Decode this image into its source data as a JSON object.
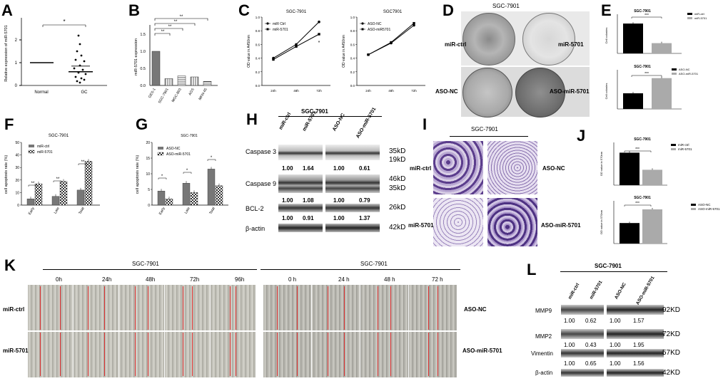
{
  "panels": [
    "A",
    "B",
    "C",
    "D",
    "E",
    "F",
    "G",
    "H",
    "I",
    "J",
    "K",
    "L"
  ],
  "cell_line": "SGC-7901",
  "A": {
    "ylabel": "Relative expression of miR-5701",
    "groups": [
      "Normal",
      "GC"
    ],
    "sig": "*",
    "yticks": [
      "0",
      "1",
      "2"
    ]
  },
  "B": {
    "ylabel": "miR-5701 expression",
    "sig": [
      "**",
      "**",
      "**",
      "**"
    ],
    "yticks": [
      "0.0",
      "0.5",
      "1.0",
      "1.5"
    ]
  },
  "C1": {
    "title": "SGC-7901",
    "ylabel": "OD value in A450nm",
    "series": [
      "miR Ctrl",
      "miR-5701"
    ],
    "x": [
      "24h",
      "48h",
      "72h"
    ],
    "yticks": [
      "0.0",
      "0.2",
      "0.4",
      "0.6",
      "0.8",
      "1.0"
    ],
    "sig": "*"
  },
  "C2": {
    "title": "SGC7901",
    "ylabel": "OD value in A450nm",
    "series": [
      "ASO-NC",
      "ASO-miR5701"
    ],
    "x": [
      "24h",
      "48h",
      "72h"
    ],
    "yticks": [
      "0.0",
      "0.2",
      "0.4",
      "0.6",
      "0.8",
      "1.0"
    ]
  },
  "D": {
    "title": "SGC-7901",
    "labels": [
      "miR-ctrl",
      "miR-5701",
      "ASO-NC",
      "ASO-miR-5701"
    ]
  },
  "E1": {
    "title": "SGC-7901",
    "ylabel": "Cell colonies",
    "legend": [
      "miR-ctrl",
      "miR-5701"
    ],
    "sig": "***"
  },
  "E2": {
    "title": "SGC-7901",
    "ylabel": "Cell colonies",
    "legend": [
      "ASO-NC",
      "ASO-miR-5701"
    ],
    "sig": "***"
  },
  "F": {
    "title": "SGC-7901",
    "ylabel": "cell apoptosis rate (%)",
    "legend": [
      "miR-ctrl",
      "miR-5701"
    ],
    "groups": [
      "Early",
      "Late",
      "Total"
    ],
    "sig": [
      "**",
      "**",
      "**"
    ],
    "yticks": [
      "0",
      "10",
      "20",
      "30",
      "40",
      "50"
    ]
  },
  "G": {
    "title": "SGC-7901",
    "ylabel": "cell apoptosis rate (%)",
    "legend": [
      "ASO-NC",
      "ASO-miR-5701"
    ],
    "groups": [
      "Early",
      "Late",
      "Total"
    ],
    "sig": [
      "*",
      "*",
      "*"
    ],
    "yticks": [
      "0",
      "5",
      "10",
      "15",
      "20"
    ]
  },
  "H": {
    "title": "SGC-7901",
    "lanes": [
      "miR-ctrl",
      "miR-5701",
      "ASO-NC",
      "ASO-miR-5701"
    ],
    "proteins": [
      "Caspase 3",
      "Caspase 9",
      "BCL-2",
      "β-actin"
    ],
    "kd": [
      "35kD",
      "19kD",
      "46kD",
      "35kD",
      "26kD",
      "42kD"
    ],
    "values": [
      [
        "1.00",
        "1.64",
        "1.00",
        "0.61"
      ],
      [
        "1.00",
        "1.08",
        "1.00",
        "0.79"
      ],
      [
        "1.00",
        "0.91",
        "1.00",
        "1.37"
      ]
    ]
  },
  "I": {
    "title": "SGC-7901",
    "labels": [
      "miR-ctrl",
      "ASO-NC",
      "miR-5701",
      "ASO-miR-5701"
    ]
  },
  "J1": {
    "title": "SGC-7901",
    "ylabel": "OD value in 570nm",
    "legend": [
      "miR-ctrl",
      "miR-5701"
    ],
    "sig": "***"
  },
  "J2": {
    "title": "SGC-7901",
    "ylabel": "OD value in 570nm",
    "legend": [
      "ASO-NC",
      "ASO-miR-5701"
    ],
    "sig": "***"
  },
  "K": {
    "title_left": "SGC-7901",
    "title_right": "SGC-7901",
    "times_left": [
      "0h",
      "24h",
      "48h",
      "72h",
      "96h"
    ],
    "times_right": [
      "0 h",
      "24 h",
      "48 h",
      "72 h"
    ],
    "rows_left": [
      "miR-ctrl",
      "miR-5701"
    ],
    "rows_right": [
      "ASO-NC",
      "ASO-miR-5701"
    ]
  },
  "L": {
    "title": "SGC-7901",
    "lanes": [
      "miR-ctrl",
      "miR-5701",
      "ASO-NC",
      "ASO-miR-5701"
    ],
    "proteins": [
      "MMP9",
      "MMP2",
      "Vimentin",
      "β-actin"
    ],
    "kd": [
      "92KD",
      "72KD",
      "57KD",
      "42KD"
    ],
    "values": [
      [
        "1.00",
        "0.62",
        "1.00",
        "1.57"
      ],
      [
        "1.00",
        "0.43",
        "1.00",
        "1.95"
      ],
      [
        "1.00",
        "0.65",
        "1.00",
        "1.56"
      ]
    ]
  },
  "chart_data": [
    {
      "panel": "A",
      "type": "scatter",
      "categories": [
        "Normal",
        "GC"
      ],
      "values": [
        1.0,
        0.6
      ],
      "ylabel": "Relative expression of miR-5701",
      "ylim": [
        0,
        2
      ]
    },
    {
      "panel": "B",
      "type": "bar",
      "categories": [
        "GES-1",
        "SGC-7901",
        "MGC-803",
        "AGS",
        "MKN-45"
      ],
      "values": [
        1.0,
        0.2,
        0.28,
        0.25,
        0.12
      ],
      "ylabel": "miR-5701 expression",
      "ylim": [
        0,
        1.5
      ]
    },
    {
      "panel": "C1",
      "type": "line",
      "title": "SGC-7901",
      "x": [
        "24h",
        "48h",
        "72h"
      ],
      "series": [
        {
          "name": "miR Ctrl",
          "values": [
            0.4,
            0.6,
            0.93
          ]
        },
        {
          "name": "miR-5701",
          "values": [
            0.38,
            0.57,
            0.75
          ]
        }
      ],
      "ylabel": "OD value in A450nm",
      "ylim": [
        0,
        1.0
      ]
    },
    {
      "panel": "C2",
      "type": "line",
      "title": "SGC7901",
      "x": [
        "24h",
        "48h",
        "72h"
      ],
      "series": [
        {
          "name": "ASO-NC",
          "values": [
            0.45,
            0.62,
            0.88
          ]
        },
        {
          "name": "ASO-miR5701",
          "values": [
            0.45,
            0.63,
            0.91
          ]
        }
      ],
      "ylabel": "OD value in A450nm",
      "ylim": [
        0,
        1.0
      ]
    },
    {
      "panel": "E1",
      "type": "bar",
      "title": "SGC-7901",
      "categories": [
        "miR-ctrl",
        "miR-5701"
      ],
      "values": [
        305,
        105
      ],
      "ylabel": "Cell colonies",
      "ylim": [
        0,
        400
      ]
    },
    {
      "panel": "E2",
      "type": "bar",
      "title": "SGC-7901",
      "categories": [
        "ASO-NC",
        "ASO-miR-5701"
      ],
      "values": [
        320,
        630
      ],
      "ylabel": "Cell colonies",
      "ylim": [
        0,
        800
      ]
    },
    {
      "panel": "F",
      "type": "bar",
      "title": "SGC-7901",
      "categories": [
        "Early",
        "Late",
        "Total"
      ],
      "series": [
        {
          "name": "miR-ctrl",
          "values": [
            5,
            7,
            12
          ]
        },
        {
          "name": "miR-5701",
          "values": [
            17,
            19,
            35
          ]
        }
      ],
      "ylabel": "cell apoptosis rate (%)",
      "ylim": [
        0,
        50
      ]
    },
    {
      "panel": "G",
      "type": "bar",
      "title": "SGC-7901",
      "categories": [
        "Early",
        "Late",
        "Total"
      ],
      "series": [
        {
          "name": "ASO-NC",
          "values": [
            4.5,
            7,
            11.5
          ]
        },
        {
          "name": "ASO-miR-5701",
          "values": [
            2,
            4,
            6.2
          ]
        }
      ],
      "ylabel": "cell apoptosis rate (%)",
      "ylim": [
        0,
        20
      ]
    },
    {
      "panel": "J1",
      "type": "bar",
      "title": "SGC-7901",
      "categories": [
        "miR-ctrl",
        "miR-5701"
      ],
      "values": [
        0.19,
        0.09
      ],
      "ylabel": "OD value in 570nm",
      "ylim": [
        0,
        0.25
      ]
    },
    {
      "panel": "J2",
      "type": "bar",
      "title": "SGC-7901",
      "categories": [
        "ASO-NC",
        "ASO-miR-5701"
      ],
      "values": [
        0.12,
        0.2
      ],
      "ylabel": "OD value in 570nm",
      "ylim": [
        0,
        0.25
      ]
    }
  ]
}
